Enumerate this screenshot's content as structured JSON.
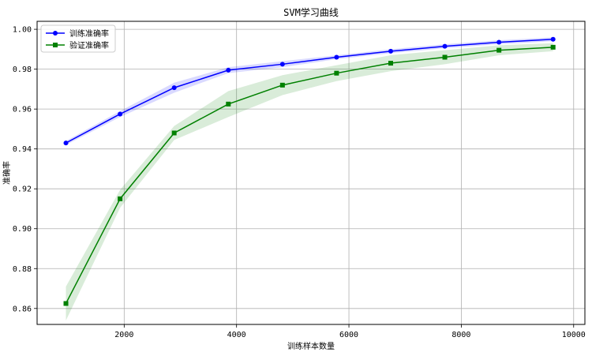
{
  "chart_data": {
    "type": "line",
    "title": "SVM学习曲线",
    "xlabel": "训练样本数量",
    "ylabel": "准确率",
    "xlim": [
      450,
      10200
    ],
    "ylim": [
      0.852,
      1.004
    ],
    "xticks": [
      2000,
      4000,
      6000,
      8000,
      10000
    ],
    "yticks": [
      0.86,
      0.88,
      0.9,
      0.92,
      0.94,
      0.96,
      0.98,
      1.0
    ],
    "ytick_labels": [
      "0.86",
      "0.88",
      "0.90",
      "0.92",
      "0.94",
      "0.96",
      "0.98",
      "1.00"
    ],
    "grid": true,
    "legend_position": "top-left",
    "x": [
      963,
      1927,
      2890,
      3854,
      4817,
      5780,
      6744,
      7707,
      8671,
      9634
    ],
    "series": [
      {
        "name": "训练准确率",
        "color": "#0000ff",
        "marker": "circle",
        "values": [
          0.943,
          0.9575,
          0.9707,
          0.9795,
          0.9825,
          0.986,
          0.989,
          0.9915,
          0.9935,
          0.995
        ],
        "std": [
          0.001,
          0.0015,
          0.0025,
          0.0015,
          0.0015,
          0.001,
          0.001,
          0.001,
          0.001,
          0.001
        ]
      },
      {
        "name": "验证准确率",
        "color": "#008000",
        "marker": "square",
        "values": [
          0.8625,
          0.915,
          0.948,
          0.9625,
          0.972,
          0.978,
          0.983,
          0.986,
          0.9895,
          0.991
        ],
        "std": [
          0.0085,
          0.0045,
          0.0035,
          0.0065,
          0.005,
          0.004,
          0.004,
          0.0035,
          0.0025,
          0.002
        ]
      }
    ]
  }
}
